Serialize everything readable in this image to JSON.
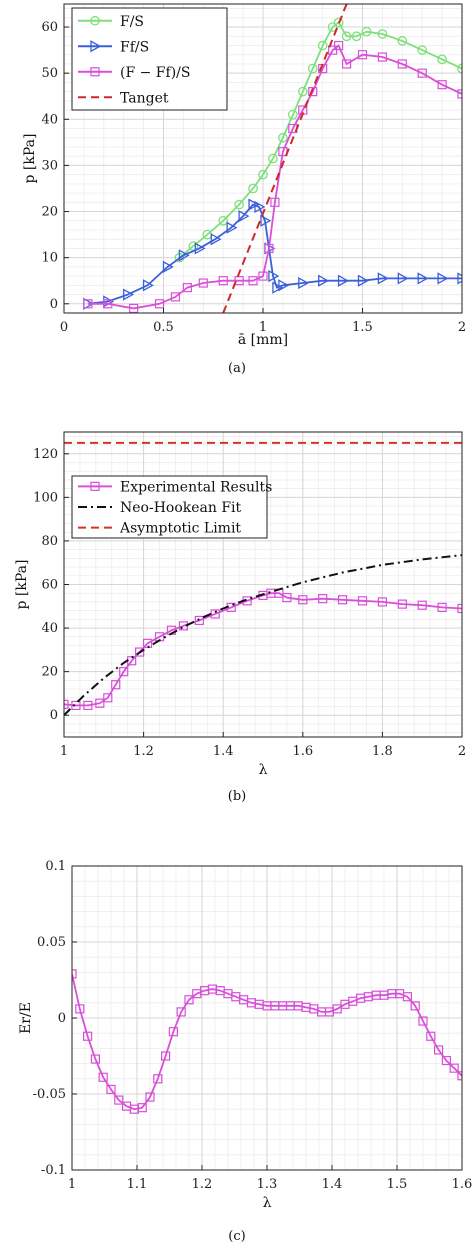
{
  "chart_data": [
    {
      "type": "line",
      "caption": "(a)",
      "xlabel": "ā [mm]",
      "ylabel": "p [kPa]",
      "xlim": [
        0,
        2
      ],
      "ylim": [
        -2,
        65
      ],
      "xticks": [
        "0",
        "0.5",
        "1",
        "1.5",
        "2"
      ],
      "yticks": [
        "0",
        "10",
        "20",
        "30",
        "40",
        "50",
        "60"
      ],
      "xtick_values": [
        0,
        0.5,
        1,
        1.5,
        2
      ],
      "ytick_values": [
        0,
        10,
        20,
        30,
        40,
        50,
        60
      ],
      "grid": true,
      "legend": "top-left",
      "series": [
        {
          "name": "F/S",
          "color": "#7ee07a",
          "marker": "circle",
          "x": [
            0.58,
            0.65,
            0.72,
            0.8,
            0.88,
            0.95,
            1.0,
            1.05,
            1.1,
            1.15,
            1.2,
            1.25,
            1.3,
            1.35,
            1.38,
            1.42,
            1.47,
            1.52,
            1.6,
            1.7,
            1.8,
            1.9,
            2.0
          ],
          "y": [
            10,
            12.5,
            15,
            18,
            21.5,
            25,
            28,
            31.5,
            36,
            41,
            46,
            51,
            56,
            60,
            61,
            58,
            58,
            59,
            58.5,
            57,
            55,
            53,
            51
          ]
        },
        {
          "name": "Ff/S",
          "color": "#3b5fdc",
          "marker": "triangle-right",
          "x": [
            0.12,
            0.22,
            0.32,
            0.42,
            0.52,
            0.6,
            0.68,
            0.76,
            0.84,
            0.9,
            0.95,
            0.98,
            1.01,
            1.03,
            1.05,
            1.07,
            1.1,
            1.2,
            1.3,
            1.4,
            1.5,
            1.6,
            1.7,
            1.8,
            1.9,
            2.0
          ],
          "y": [
            0,
            0.5,
            2,
            4,
            8,
            10.5,
            12,
            14,
            16.5,
            19,
            21.5,
            21,
            18,
            12,
            6,
            3.5,
            4,
            4.5,
            5,
            5,
            5,
            5.5,
            5.5,
            5.5,
            5.5,
            5.5
          ]
        },
        {
          "name": "(F − Ff)/S",
          "color": "#d84fd8",
          "marker": "square",
          "x": [
            0.12,
            0.22,
            0.35,
            0.48,
            0.56,
            0.62,
            0.7,
            0.8,
            0.88,
            0.95,
            1.0,
            1.03,
            1.06,
            1.1,
            1.15,
            1.2,
            1.25,
            1.3,
            1.35,
            1.38,
            1.42,
            1.5,
            1.6,
            1.7,
            1.8,
            1.9,
            2.0
          ],
          "y": [
            0,
            0,
            -1,
            0,
            1.5,
            3.5,
            4.5,
            5,
            5,
            5,
            6,
            12,
            22,
            33,
            38,
            42,
            46,
            51,
            55,
            56,
            52,
            54,
            53.5,
            52,
            50,
            47.5,
            45.5
          ]
        },
        {
          "name": "Tanget",
          "color": "#cc2a2a",
          "marker": "none",
          "dashed": true,
          "x": [
            0.8,
            1.42
          ],
          "y": [
            -2,
            65
          ]
        }
      ]
    },
    {
      "type": "line",
      "caption": "(b)",
      "xlabel": "λ",
      "ylabel": "p [kPa]",
      "xlim": [
        1,
        2
      ],
      "ylim": [
        -10,
        130
      ],
      "xticks": [
        "1",
        "1.2",
        "1.4",
        "1.6",
        "1.8",
        "2"
      ],
      "yticks": [
        "0",
        "20",
        "40",
        "60",
        "80",
        "100",
        "120"
      ],
      "xtick_values": [
        1,
        1.2,
        1.4,
        1.6,
        1.8,
        2
      ],
      "ytick_values": [
        0,
        20,
        40,
        60,
        80,
        100,
        120
      ],
      "grid": true,
      "legend": "top-left",
      "series": [
        {
          "name": "Experimental Results",
          "color": "#d84fd8",
          "marker": "square",
          "x": [
            1.0,
            1.03,
            1.06,
            1.09,
            1.11,
            1.13,
            1.15,
            1.17,
            1.19,
            1.21,
            1.24,
            1.27,
            1.3,
            1.34,
            1.38,
            1.42,
            1.46,
            1.5,
            1.52,
            1.54,
            1.56,
            1.6,
            1.65,
            1.7,
            1.75,
            1.8,
            1.85,
            1.9,
            1.95,
            2.0
          ],
          "y": [
            5,
            4.5,
            4.5,
            5.5,
            8,
            14,
            20,
            25,
            29,
            33,
            36,
            39,
            41,
            43.5,
            46.5,
            49.5,
            52.5,
            55,
            56,
            56,
            54,
            53,
            53.5,
            53,
            52.5,
            52,
            51,
            50.5,
            49.5,
            49
          ]
        },
        {
          "name": "Neo-Hookean Fit",
          "color": "#111111",
          "marker": "none",
          "dashdot": true,
          "x": [
            1.0,
            1.05,
            1.1,
            1.15,
            1.2,
            1.25,
            1.3,
            1.35,
            1.4,
            1.45,
            1.5,
            1.6,
            1.7,
            1.8,
            1.9,
            2.0
          ],
          "y": [
            0,
            9,
            17,
            24,
            30,
            35.5,
            40.5,
            45,
            49,
            52.5,
            55.5,
            61,
            65.5,
            69,
            71.5,
            73.5
          ]
        },
        {
          "name": "Asymptotic Limit",
          "color": "#d9302a",
          "marker": "none",
          "dashed": true,
          "x": [
            1.0,
            2.0
          ],
          "y": [
            125,
            125
          ]
        }
      ]
    },
    {
      "type": "line",
      "caption": "(c)",
      "xlabel": "λ",
      "ylabel": "Er/E",
      "xlim": [
        1,
        1.6
      ],
      "ylim": [
        -0.1,
        0.1
      ],
      "xticks": [
        "1",
        "1.1",
        "1.2",
        "1.3",
        "1.4",
        "1.5",
        "1.6"
      ],
      "yticks": [
        "-0.1",
        "-0.05",
        "0",
        "0.05",
        "0.1"
      ],
      "xtick_values": [
        1,
        1.1,
        1.2,
        1.3,
        1.4,
        1.5,
        1.6
      ],
      "ytick_values": [
        -0.1,
        -0.05,
        0,
        0.05,
        0.1
      ],
      "grid": true,
      "series": [
        {
          "name": "",
          "color": "#d84fd8",
          "marker": "square",
          "x": [
            1.0,
            1.012,
            1.024,
            1.036,
            1.048,
            1.06,
            1.072,
            1.084,
            1.096,
            1.108,
            1.12,
            1.132,
            1.144,
            1.156,
            1.168,
            1.18,
            1.192,
            1.204,
            1.216,
            1.228,
            1.24,
            1.252,
            1.264,
            1.276,
            1.288,
            1.3,
            1.312,
            1.324,
            1.336,
            1.348,
            1.36,
            1.372,
            1.384,
            1.396,
            1.408,
            1.42,
            1.432,
            1.444,
            1.456,
            1.468,
            1.48,
            1.492,
            1.504,
            1.516,
            1.528,
            1.54,
            1.552,
            1.564,
            1.576,
            1.588,
            1.6
          ],
          "y": [
            0.029,
            0.006,
            -0.012,
            -0.027,
            -0.039,
            -0.047,
            -0.054,
            -0.058,
            -0.06,
            -0.059,
            -0.052,
            -0.04,
            -0.025,
            -0.009,
            0.004,
            0.012,
            0.016,
            0.018,
            0.019,
            0.018,
            0.016,
            0.014,
            0.012,
            0.01,
            0.009,
            0.008,
            0.008,
            0.008,
            0.008,
            0.008,
            0.007,
            0.006,
            0.004,
            0.004,
            0.006,
            0.009,
            0.011,
            0.013,
            0.014,
            0.015,
            0.015,
            0.016,
            0.016,
            0.014,
            0.008,
            -0.002,
            -0.012,
            -0.021,
            -0.028,
            -0.033,
            -0.038
          ]
        }
      ]
    }
  ]
}
